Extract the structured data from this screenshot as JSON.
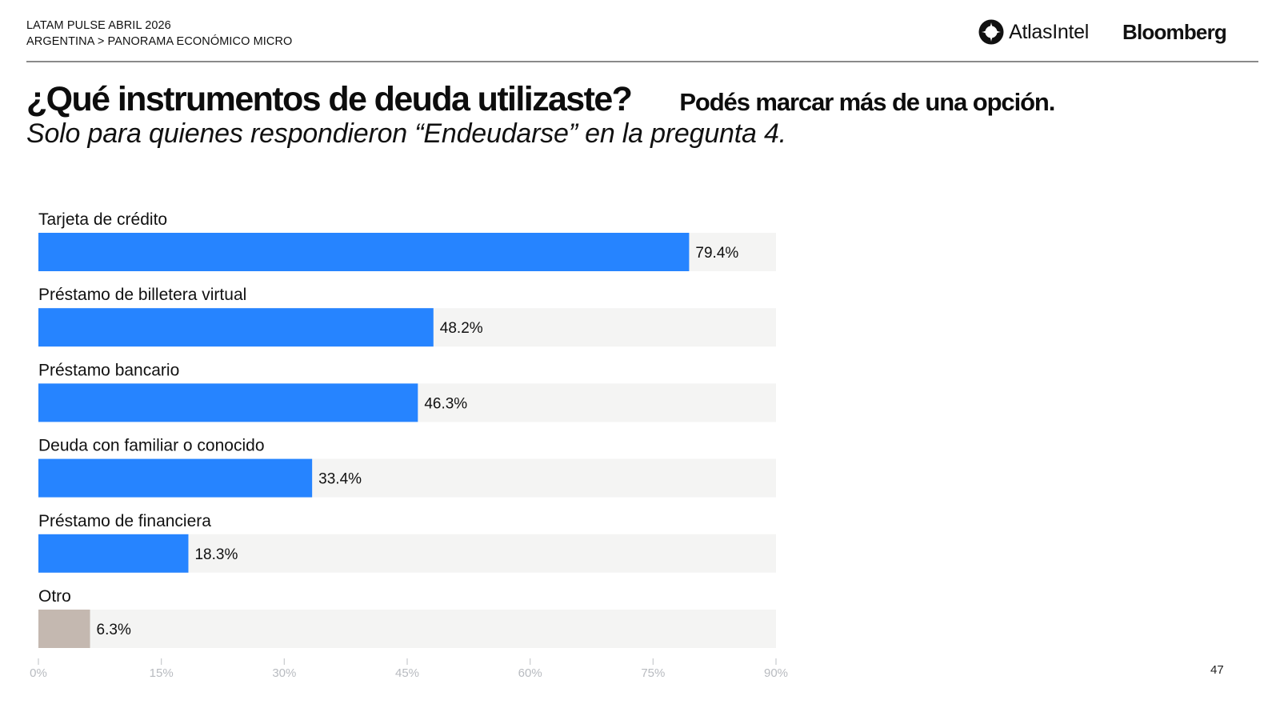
{
  "header": {
    "report_title": "LATAM PULSE ABRIL 2026",
    "breadcrumb": "ARGENTINA > PANORAMA ECONÓMICO MICRO",
    "atlas_logo_text": "AtlasIntel",
    "bloomberg_logo_text": "Bloomberg"
  },
  "question": {
    "title": "¿Qué instrumentos de deuda utilizaste?",
    "instruction": "Podés marcar más de una opción.",
    "subtitle": "Solo para quienes respondieron “Endeudarse” en la pregunta 4."
  },
  "colors": {
    "bar_primary": "#2684FF",
    "bar_other": "#C4B8B0",
    "track": "#F4F4F3",
    "tick_text": "#B8BBC0"
  },
  "chart_data": {
    "type": "bar",
    "orientation": "horizontal",
    "title": "¿Qué instrumentos de deuda utilizaste?",
    "xlabel": "",
    "ylabel": "",
    "unit": "%",
    "xlim": [
      0,
      90
    ],
    "xticks": [
      0,
      15,
      30,
      45,
      60,
      75,
      90
    ],
    "xtick_labels": [
      "0%",
      "15%",
      "30%",
      "45%",
      "60%",
      "75%",
      "90%"
    ],
    "grid": false,
    "categories": [
      "Tarjeta de crédito",
      "Préstamo de billetera virtual",
      "Préstamo bancario",
      "Deuda con familiar o conocido",
      "Préstamo de financiera",
      "Otro"
    ],
    "values": [
      79.4,
      48.2,
      46.3,
      33.4,
      18.3,
      6.3
    ],
    "data_labels": [
      "79.4%",
      "48.2%",
      "46.3%",
      "33.4%",
      "18.3%",
      "6.3%"
    ],
    "highlight": [
      "primary",
      "primary",
      "primary",
      "primary",
      "primary",
      "other"
    ]
  },
  "footer": {
    "page_number": "47"
  }
}
